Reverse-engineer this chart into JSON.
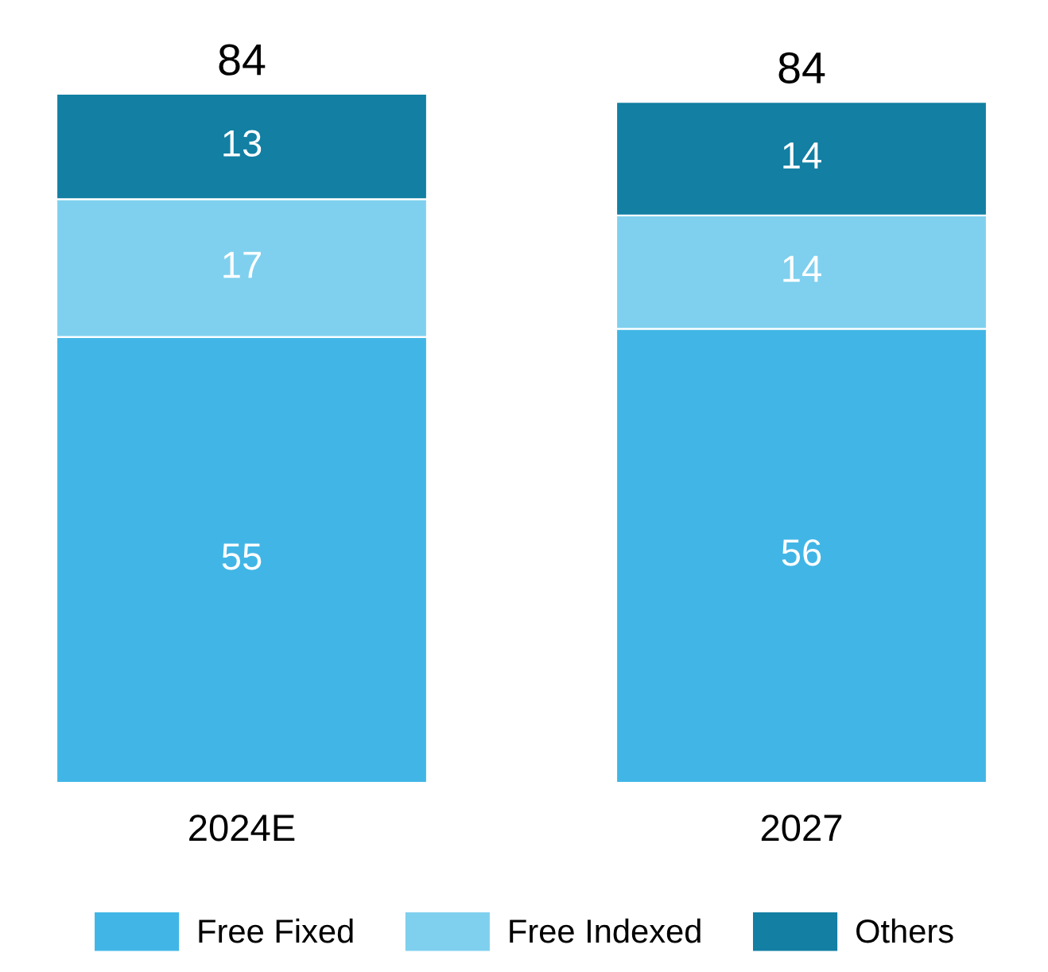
{
  "chart_data": {
    "type": "bar",
    "stacked": true,
    "data_labels": true,
    "legend": "bottom",
    "grid": false,
    "categories": [
      "2024E",
      "2027"
    ],
    "series": [
      {
        "name": "Free Fixed",
        "color": "#41b6e6",
        "values": [
          55,
          56
        ]
      },
      {
        "name": "Free Indexed",
        "color": "#7fd0ee",
        "values": [
          17,
          14
        ]
      },
      {
        "name": "Others",
        "color": "#127fa3",
        "values": [
          13,
          14
        ]
      }
    ],
    "totals": [
      "84",
      "84"
    ]
  }
}
